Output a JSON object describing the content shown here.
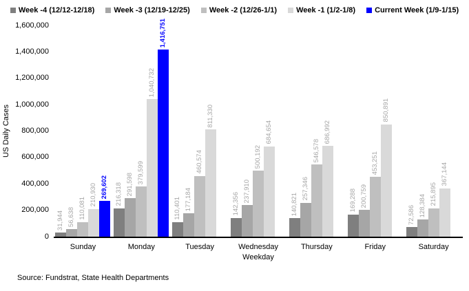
{
  "chart_data": {
    "type": "bar",
    "title": "",
    "ylabel": "US Daily Cases",
    "xlabel": "Weekday",
    "ylim": [
      0,
      1600000
    ],
    "ytick_interval": 200000,
    "ytick_labels": [
      "0",
      "200,000",
      "400,000",
      "600,000",
      "800,000",
      "1,000,000",
      "1,200,000",
      "1,400,000",
      "1,600,000"
    ],
    "grid": false,
    "legend_position": "top",
    "categories": [
      "Sunday",
      "Monday",
      "Tuesday",
      "Wednesday",
      "Thursday",
      "Friday",
      "Saturday"
    ],
    "series": [
      {
        "name": "Week -4 (12/12-12/18)",
        "color": "#7f7f7f",
        "label_color": "#a6a6a6",
        "values": [
          31944,
          216318,
          110401,
          142356,
          140821,
          169288,
          72586
        ]
      },
      {
        "name": "Week -3 (12/19-12/25)",
        "color": "#a6a6a6",
        "label_color": "#a6a6a6",
        "values": [
          56638,
          291598,
          177184,
          237910,
          257346,
          200759,
          128384
        ]
      },
      {
        "name": "Week -2 (12/26-1/1)",
        "color": "#bfbfbf",
        "label_color": "#a6a6a6",
        "values": [
          110081,
          379599,
          460574,
          500192,
          546578,
          453251,
          215895
        ]
      },
      {
        "name": "Week -1 (1/2-1/8)",
        "color": "#d9d9d9",
        "label_color": "#a6a6a6",
        "values": [
          210930,
          1040732,
          811330,
          684654,
          686992,
          850891,
          367144
        ]
      },
      {
        "name": "Current Week (1/9-1/15)",
        "color": "#0000ff",
        "label_color": "#0000ff",
        "emphasis": true,
        "values": [
          269602,
          1416751,
          null,
          null,
          null,
          null,
          null
        ]
      }
    ],
    "source": "Source: Fundstrat, State Health Departments"
  }
}
